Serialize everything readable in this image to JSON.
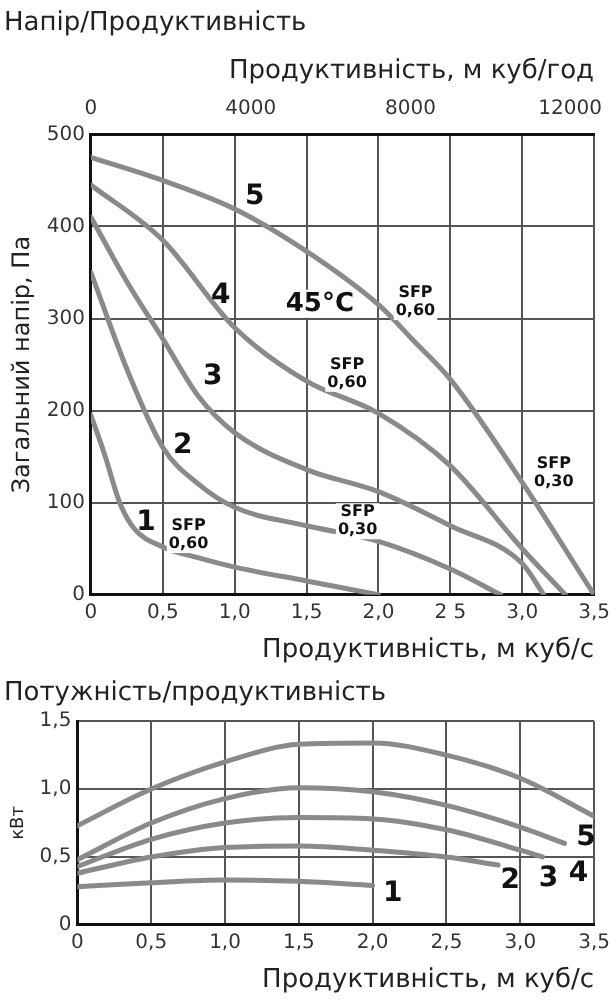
{
  "chart_data": [
    {
      "type": "line",
      "title": "Напір/Продуктивність",
      "x2label": "Продуктивність, м куб/год",
      "xlabel": "Продуктивність, м куб/с",
      "ylabel": "Загальний напір, Па",
      "series": [
        {
          "name": "1",
          "color": "#8a8a8a",
          "x": [
            0,
            0.1,
            0.2,
            0.3,
            0.5,
            0.75,
            1.0,
            1.5,
            2.0
          ],
          "values": [
            195,
            150,
            100,
            72,
            52,
            40,
            30,
            15,
            0
          ]
        },
        {
          "name": "2",
          "color": "#8a8a8a",
          "x": [
            0,
            0.25,
            0.5,
            0.75,
            1.0,
            1.5,
            2.0,
            2.5,
            2.85
          ],
          "values": [
            350,
            245,
            160,
            120,
            95,
            75,
            58,
            28,
            0
          ]
        },
        {
          "name": "3",
          "color": "#8a8a8a",
          "x": [
            0,
            0.25,
            0.5,
            0.75,
            1.0,
            1.5,
            2.0,
            2.5,
            3.0,
            3.15
          ],
          "values": [
            410,
            340,
            278,
            215,
            176,
            136,
            112,
            75,
            34,
            0
          ]
        },
        {
          "name": "4",
          "color": "#8a8a8a",
          "x": [
            0,
            0.5,
            1.0,
            1.5,
            2.0,
            2.5,
            3.0,
            3.3
          ],
          "values": [
            445,
            385,
            290,
            232,
            197,
            140,
            50,
            0
          ]
        },
        {
          "name": "5",
          "color": "#8a8a8a",
          "x": [
            0,
            0.5,
            1.0,
            1.5,
            2.0,
            2.25,
            2.5,
            3.0,
            3.5
          ],
          "values": [
            475,
            450,
            419,
            373,
            315,
            275,
            234,
            122,
            0
          ]
        }
      ],
      "xlim": [
        0,
        3.5
      ],
      "xticks": [
        0,
        {
          "value": 0.5,
          "label": "0,5"
        },
        {
          "value": 1.0,
          "label": "1,0"
        },
        {
          "value": 1.5,
          "label": "1,5"
        },
        {
          "value": 2.0,
          "label": "2,0"
        },
        {
          "value": 2.5,
          "label": "2 5"
        },
        {
          "value": 3.0,
          "label": "3,0"
        },
        {
          "value": 3.5,
          "label": "3,5"
        }
      ],
      "x2lim": [
        0,
        12600
      ],
      "x2ticks": [
        0,
        4000,
        8000,
        12000
      ],
      "ylim": [
        0,
        500
      ],
      "yticks": [
        0,
        100,
        200,
        300,
        400,
        500
      ],
      "grid": true,
      "legend": false,
      "annotations": [
        "45°C",
        "SFP 0,60",
        "SFP 0,60",
        "SFP 0,60",
        "SFP 0,30",
        "SFP 0,30"
      ]
    },
    {
      "type": "line",
      "title": "Потужність/продуктивність",
      "xlabel": "Продуктивність, м куб/с",
      "ylabel": "кВт",
      "series": [
        {
          "name": "1",
          "color": "#8a8a8a",
          "x": [
            0,
            0.5,
            1.0,
            1.5,
            2.0
          ],
          "values": [
            0.28,
            0.31,
            0.33,
            0.32,
            0.29
          ]
        },
        {
          "name": "2",
          "color": "#8a8a8a",
          "x": [
            0,
            0.5,
            1.0,
            1.5,
            2.0,
            2.5,
            2.85
          ],
          "values": [
            0.38,
            0.5,
            0.57,
            0.58,
            0.55,
            0.5,
            0.44
          ]
        },
        {
          "name": "3",
          "color": "#8a8a8a",
          "x": [
            0,
            0.5,
            1.0,
            1.5,
            2.0,
            2.5,
            3.0,
            3.15
          ],
          "values": [
            0.43,
            0.63,
            0.75,
            0.79,
            0.78,
            0.7,
            0.55,
            0.5
          ]
        },
        {
          "name": "4",
          "color": "#8a8a8a",
          "x": [
            0,
            0.5,
            1.0,
            1.5,
            2.0,
            2.5,
            3.0,
            3.3
          ],
          "values": [
            0.48,
            0.75,
            0.93,
            1.01,
            0.98,
            0.88,
            0.72,
            0.6
          ]
        },
        {
          "name": "5",
          "color": "#8a8a8a",
          "x": [
            0,
            0.5,
            1.0,
            1.5,
            2.0,
            2.5,
            3.0,
            3.5
          ],
          "values": [
            0.73,
            1.0,
            1.2,
            1.33,
            1.34,
            1.25,
            1.08,
            0.8
          ]
        }
      ],
      "xlim": [
        0,
        3.5
      ],
      "xticks": [
        0,
        {
          "value": 0.5,
          "label": "0,5"
        },
        {
          "value": 1.0,
          "label": "1,0"
        },
        {
          "value": 1.5,
          "label": "1,5"
        },
        {
          "value": 2.0,
          "label": "2,0"
        },
        {
          "value": 2.5,
          "label": "2,5"
        },
        {
          "value": 3.0,
          "label": "3,0"
        },
        {
          "value": 3.5,
          "label": "3,5"
        }
      ],
      "ylim": [
        0,
        1.5
      ],
      "yticks": [
        0,
        {
          "value": 0.5,
          "label": "0,5"
        },
        {
          "value": 1.0,
          "label": "1,0"
        },
        {
          "value": 1.5,
          "label": "1,5"
        }
      ],
      "grid": true,
      "legend": false
    }
  ]
}
